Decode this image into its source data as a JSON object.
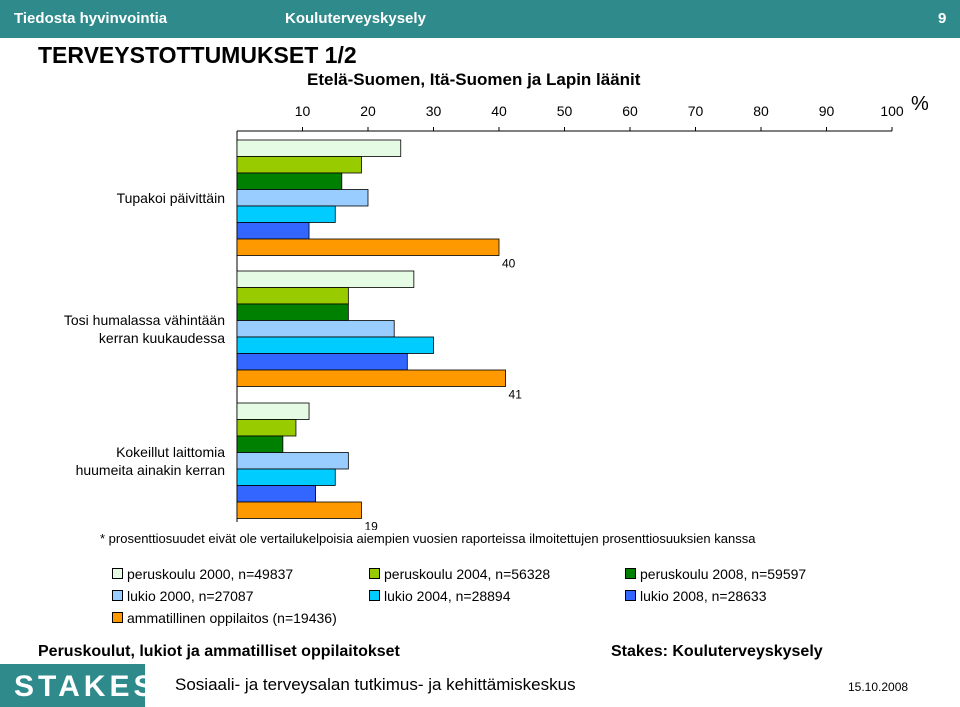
{
  "header": {
    "left_label": "Tiedosta hyvinvointia",
    "center_label": "Kouluterveyskysely",
    "page_number": "9"
  },
  "title": "TERVEYSTOTTUMUKSET 1/2",
  "subtitle": "Etelä-Suomen, Itä-Suomen ja Lapin läänit",
  "percent_sign": "%",
  "note": "* prosenttiosuudet eivät ole vertailukelpoisia aiempien vuosien raporteissa ilmoitettujen prosenttiosuuksien kanssa",
  "footer": {
    "left": "Peruskoulut, lukiot ja ammatilliset oppilaitokset",
    "right": "Stakes: Kouluterveyskysely",
    "logo": "STAKES",
    "institute": "Sosiaali- ja terveysalan tutkimus- ja kehittämiskeskus",
    "date": "15.10.2008"
  },
  "colors": {
    "header_bg": "#2f8a8c"
  },
  "chart_data": {
    "type": "bar",
    "orientation": "horizontal",
    "title": "TERVEYSTOTTUMUKSET 1/2",
    "subtitle": "Etelä-Suomen, Itä-Suomen ja Lapin läänit",
    "xlim": [
      0,
      100
    ],
    "x_ticks": [
      "10",
      "20",
      "30",
      "40",
      "50",
      "60",
      "70",
      "80",
      "90",
      "100"
    ],
    "grid": false,
    "legend_position": "bottom",
    "categories": [
      "Tupakoi päivittäin",
      "Tosi humalassa vähintään kerran kuukaudessa",
      "Kokeillut laittomia huumeita ainakin kerran"
    ],
    "series": [
      {
        "name": "peruskoulu 2000, n=49837",
        "color": "#e6fbe4",
        "values": [
          25,
          27,
          11
        ],
        "labels": [
          "",
          "",
          ""
        ]
      },
      {
        "name": "peruskoulu 2004, n=56328",
        "color": "#99cc00",
        "values": [
          19,
          17,
          9
        ],
        "labels": [
          "",
          "",
          ""
        ]
      },
      {
        "name": "peruskoulu 2008, n=59597",
        "color": "#008000",
        "values": [
          16,
          17,
          7
        ],
        "labels": [
          "16",
          "17",
          "7"
        ]
      },
      {
        "name": "lukio 2000, n=27087",
        "color": "#99ccff",
        "values": [
          20,
          24,
          17
        ],
        "labels": [
          "",
          "",
          ""
        ]
      },
      {
        "name": "lukio 2004, n=28894",
        "color": "#00ccff",
        "values": [
          15,
          30,
          15
        ],
        "labels": [
          "",
          "",
          ""
        ]
      },
      {
        "name": "lukio 2008, n=28633",
        "color": "#3366ff",
        "values": [
          11,
          26,
          12
        ],
        "labels": [
          "11",
          "26",
          "12"
        ]
      },
      {
        "name": "ammatillinen oppilaitos (n=19436)",
        "color": "#ff9900",
        "values": [
          40,
          41,
          19
        ],
        "labels": [
          "40",
          "41",
          "19"
        ]
      }
    ]
  }
}
